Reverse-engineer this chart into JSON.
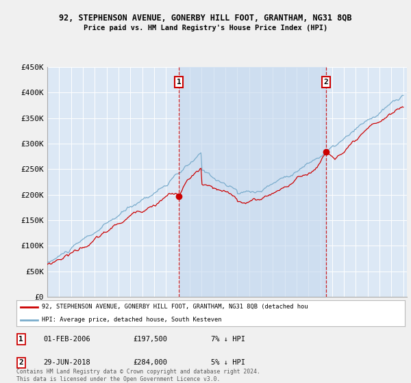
{
  "title_line1": "92, STEPHENSON AVENUE, GONERBY HILL FOOT, GRANTHAM, NG31 8QB",
  "title_line2": "Price paid vs. HM Land Registry's House Price Index (HPI)",
  "fig_bg_color": "#f0f0f0",
  "plot_bg_color": "#dce8f5",
  "shade_color": "#c5d8ee",
  "ylim": [
    0,
    450000
  ],
  "yticks": [
    0,
    50000,
    100000,
    150000,
    200000,
    250000,
    300000,
    350000,
    400000,
    450000
  ],
  "xstart_year": 1995,
  "xend_year": 2025,
  "marker1_year": 2006.08,
  "marker1_price": 197500,
  "marker2_year": 2018.5,
  "marker2_price": 284000,
  "legend_line1": "92, STEPHENSON AVENUE, GONERBY HILL FOOT, GRANTHAM, NG31 8QB (detached hou",
  "legend_line2": "HPI: Average price, detached house, South Kesteven",
  "footer": "Contains HM Land Registry data © Crown copyright and database right 2024.\nThis data is licensed under the Open Government Licence v3.0.",
  "red_line_color": "#cc0000",
  "blue_line_color": "#7aaccc",
  "grid_color": "#ffffff",
  "table_row1": [
    "1",
    "01-FEB-2006",
    "£197,500",
    "7% ↓ HPI"
  ],
  "table_row2": [
    "2",
    "29-JUN-2018",
    "£284,000",
    "5% ↓ HPI"
  ]
}
